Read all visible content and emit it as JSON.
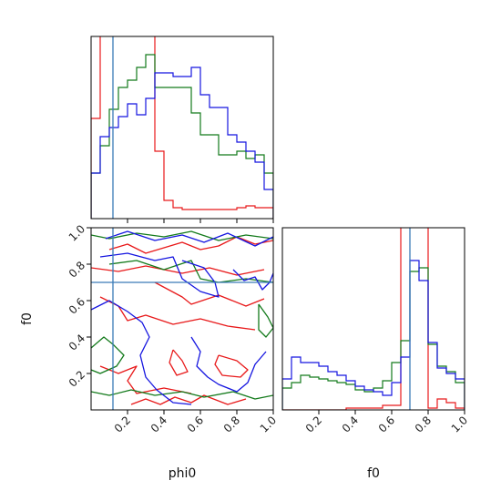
{
  "chart_data": {
    "type": "corner",
    "parameters": [
      "phi0",
      "f0"
    ],
    "xlabel": "phi0",
    "ylabel": "f0",
    "f0_xlabel": "f0",
    "xlim": [
      0.0,
      1.0
    ],
    "ylim": [
      0.0,
      1.0
    ],
    "tick_labels": [
      "0.2",
      "0.4",
      "0.6",
      "0.8",
      "1.0"
    ],
    "truth": {
      "phi0": 0.12,
      "f0": 0.7
    },
    "colors": {
      "red": "#e8191a",
      "green": "#137a1b",
      "blue": "#1515e0",
      "truth": "#3a7bb6"
    },
    "phi0_hist": {
      "bin_edges": [
        0.0,
        0.05,
        0.1,
        0.15,
        0.2,
        0.25,
        0.3,
        0.35,
        0.4,
        0.45,
        0.5,
        0.55,
        0.6,
        0.65,
        0.7,
        0.75,
        0.8,
        0.85,
        0.9,
        0.95,
        1.0
      ],
      "series": [
        {
          "color": "red",
          "values": [
            0.55,
            1.2,
            1.2,
            1.2,
            1.2,
            1.2,
            1.2,
            0.37,
            0.1,
            0.06,
            0.05,
            0.05,
            0.05,
            0.05,
            0.05,
            0.05,
            0.06,
            0.07,
            0.06,
            0.06
          ]
        },
        {
          "color": "green",
          "values": [
            0.25,
            0.4,
            0.6,
            0.72,
            0.76,
            0.83,
            0.9,
            0.72,
            0.72,
            0.72,
            0.72,
            0.58,
            0.46,
            0.46,
            0.35,
            0.35,
            0.37,
            0.33,
            0.35,
            0.25
          ]
        },
        {
          "color": "blue",
          "values": [
            0.25,
            0.45,
            0.5,
            0.56,
            0.63,
            0.57,
            0.66,
            0.8,
            0.8,
            0.78,
            0.78,
            0.83,
            0.68,
            0.61,
            0.61,
            0.46,
            0.42,
            0.37,
            0.31,
            0.16
          ]
        }
      ]
    },
    "f0_hist": {
      "bin_edges": [
        0.0,
        0.05,
        0.1,
        0.15,
        0.2,
        0.25,
        0.3,
        0.35,
        0.4,
        0.45,
        0.5,
        0.55,
        0.6,
        0.65,
        0.7,
        0.75,
        0.8,
        0.85,
        0.9,
        0.95,
        1.0
      ],
      "series": [
        {
          "color": "red",
          "values": [
            0,
            0,
            0,
            0,
            0,
            0,
            0,
            0.01,
            0.01,
            0.01,
            0.01,
            0.025,
            0.025,
            1.2,
            1.2,
            1.2,
            0.01,
            0.06,
            0.04,
            0.01
          ]
        },
        {
          "color": "green",
          "values": [
            0.12,
            0.15,
            0.19,
            0.18,
            0.17,
            0.16,
            0.15,
            0.14,
            0.11,
            0.1,
            0.12,
            0.16,
            0.26,
            0.38,
            0.76,
            0.78,
            0.36,
            0.24,
            0.21,
            0.15
          ]
        },
        {
          "color": "blue",
          "values": [
            0.17,
            0.29,
            0.26,
            0.26,
            0.24,
            0.21,
            0.19,
            0.16,
            0.13,
            0.11,
            0.1,
            0.08,
            0.15,
            0.29,
            0.82,
            0.71,
            0.37,
            0.23,
            0.2,
            0.17
          ]
        }
      ]
    },
    "contours": [
      {
        "color": "red",
        "points": [
          [
            0.1,
            0.88
          ],
          [
            0.2,
            0.91
          ],
          [
            0.3,
            0.86
          ],
          [
            0.4,
            0.89
          ],
          [
            0.5,
            0.92
          ],
          [
            0.6,
            0.88
          ],
          [
            0.7,
            0.9
          ],
          [
            0.8,
            0.95
          ],
          [
            0.9,
            0.91
          ],
          [
            1.0,
            0.93
          ]
        ]
      },
      {
        "color": "red",
        "points": [
          [
            0.0,
            0.78
          ],
          [
            0.15,
            0.76
          ],
          [
            0.3,
            0.79
          ],
          [
            0.5,
            0.75
          ],
          [
            0.65,
            0.78
          ],
          [
            0.8,
            0.74
          ],
          [
            0.95,
            0.77
          ]
        ]
      },
      {
        "color": "red",
        "points": [
          [
            0.05,
            0.62
          ],
          [
            0.15,
            0.57
          ],
          [
            0.2,
            0.49
          ],
          [
            0.3,
            0.52
          ],
          [
            0.45,
            0.47
          ],
          [
            0.6,
            0.5
          ],
          [
            0.75,
            0.46
          ],
          [
            0.9,
            0.44
          ]
        ]
      },
      {
        "color": "red",
        "points": [
          [
            0.35,
            0.7
          ],
          [
            0.5,
            0.62
          ],
          [
            0.55,
            0.58
          ],
          [
            0.7,
            0.63
          ],
          [
            0.85,
            0.57
          ],
          [
            0.95,
            0.61
          ]
        ]
      },
      {
        "color": "red",
        "points": [
          [
            0.05,
            0.24
          ],
          [
            0.15,
            0.2
          ],
          [
            0.25,
            0.24
          ],
          [
            0.2,
            0.16
          ],
          [
            0.25,
            0.09
          ],
          [
            0.4,
            0.12
          ],
          [
            0.55,
            0.09
          ]
        ]
      },
      {
        "color": "red",
        "points": [
          [
            0.7,
            0.3
          ],
          [
            0.8,
            0.27
          ],
          [
            0.86,
            0.22
          ],
          [
            0.82,
            0.18
          ],
          [
            0.72,
            0.19
          ],
          [
            0.68,
            0.25
          ],
          [
            0.7,
            0.3
          ]
        ]
      },
      {
        "color": "red",
        "points": [
          [
            0.45,
            0.33
          ],
          [
            0.5,
            0.27
          ],
          [
            0.53,
            0.21
          ],
          [
            0.47,
            0.19
          ],
          [
            0.43,
            0.26
          ],
          [
            0.45,
            0.33
          ]
        ]
      },
      {
        "color": "red",
        "points": [
          [
            0.22,
            0.03
          ],
          [
            0.3,
            0.06
          ],
          [
            0.38,
            0.03
          ],
          [
            0.46,
            0.07
          ],
          [
            0.55,
            0.04
          ],
          [
            0.62,
            0.08
          ],
          [
            0.75,
            0.03
          ],
          [
            0.85,
            0.06
          ]
        ]
      },
      {
        "color": "green",
        "points": [
          [
            0.0,
            0.96
          ],
          [
            0.1,
            0.94
          ],
          [
            0.25,
            0.97
          ],
          [
            0.4,
            0.95
          ],
          [
            0.55,
            0.98
          ],
          [
            0.7,
            0.93
          ],
          [
            0.85,
            0.96
          ],
          [
            1.0,
            0.94
          ]
        ]
      },
      {
        "color": "green",
        "points": [
          [
            0.1,
            0.8
          ],
          [
            0.25,
            0.82
          ],
          [
            0.4,
            0.77
          ],
          [
            0.55,
            0.82
          ],
          [
            0.6,
            0.72
          ],
          [
            0.7,
            0.7
          ],
          [
            0.85,
            0.72
          ],
          [
            1.0,
            0.7
          ]
        ]
      },
      {
        "color": "green",
        "points": [
          [
            0.0,
            0.34
          ],
          [
            0.07,
            0.4
          ],
          [
            0.12,
            0.36
          ],
          [
            0.18,
            0.3
          ],
          [
            0.14,
            0.24
          ],
          [
            0.05,
            0.2
          ],
          [
            0.0,
            0.22
          ]
        ]
      },
      {
        "color": "green",
        "points": [
          [
            0.0,
            0.1
          ],
          [
            0.1,
            0.08
          ],
          [
            0.22,
            0.11
          ],
          [
            0.35,
            0.08
          ],
          [
            0.5,
            0.1
          ],
          [
            0.62,
            0.07
          ],
          [
            0.78,
            0.1
          ],
          [
            0.9,
            0.06
          ],
          [
            1.0,
            0.08
          ]
        ]
      },
      {
        "color": "green",
        "points": [
          [
            0.92,
            0.58
          ],
          [
            0.97,
            0.51
          ],
          [
            1.0,
            0.45
          ],
          [
            0.96,
            0.4
          ],
          [
            0.92,
            0.44
          ],
          [
            0.92,
            0.58
          ]
        ]
      },
      {
        "color": "blue",
        "points": [
          [
            0.08,
            0.94
          ],
          [
            0.2,
            0.98
          ],
          [
            0.35,
            0.93
          ],
          [
            0.5,
            0.96
          ],
          [
            0.62,
            0.92
          ],
          [
            0.75,
            0.97
          ],
          [
            0.9,
            0.9
          ],
          [
            1.0,
            0.95
          ]
        ]
      },
      {
        "color": "blue",
        "points": [
          [
            0.05,
            0.84
          ],
          [
            0.2,
            0.86
          ],
          [
            0.35,
            0.82
          ],
          [
            0.45,
            0.84
          ],
          [
            0.5,
            0.72
          ],
          [
            0.6,
            0.65
          ],
          [
            0.7,
            0.62
          ],
          [
            0.68,
            0.7
          ],
          [
            0.62,
            0.78
          ],
          [
            0.5,
            0.82
          ]
        ]
      },
      {
        "color": "blue",
        "points": [
          [
            0.0,
            0.55
          ],
          [
            0.1,
            0.6
          ],
          [
            0.2,
            0.54
          ],
          [
            0.28,
            0.48
          ],
          [
            0.32,
            0.4
          ],
          [
            0.27,
            0.3
          ],
          [
            0.3,
            0.18
          ],
          [
            0.36,
            0.11
          ],
          [
            0.45,
            0.04
          ],
          [
            0.55,
            0.03
          ]
        ]
      },
      {
        "color": "blue",
        "points": [
          [
            0.55,
            0.4
          ],
          [
            0.6,
            0.32
          ],
          [
            0.58,
            0.24
          ],
          [
            0.64,
            0.18
          ],
          [
            0.7,
            0.14
          ],
          [
            0.8,
            0.1
          ],
          [
            0.86,
            0.15
          ],
          [
            0.9,
            0.25
          ],
          [
            0.96,
            0.32
          ]
        ]
      },
      {
        "color": "blue",
        "points": [
          [
            0.78,
            0.77
          ],
          [
            0.84,
            0.71
          ],
          [
            0.9,
            0.73
          ],
          [
            0.94,
            0.66
          ],
          [
            0.98,
            0.7
          ],
          [
            1.0,
            0.75
          ]
        ]
      }
    ]
  }
}
